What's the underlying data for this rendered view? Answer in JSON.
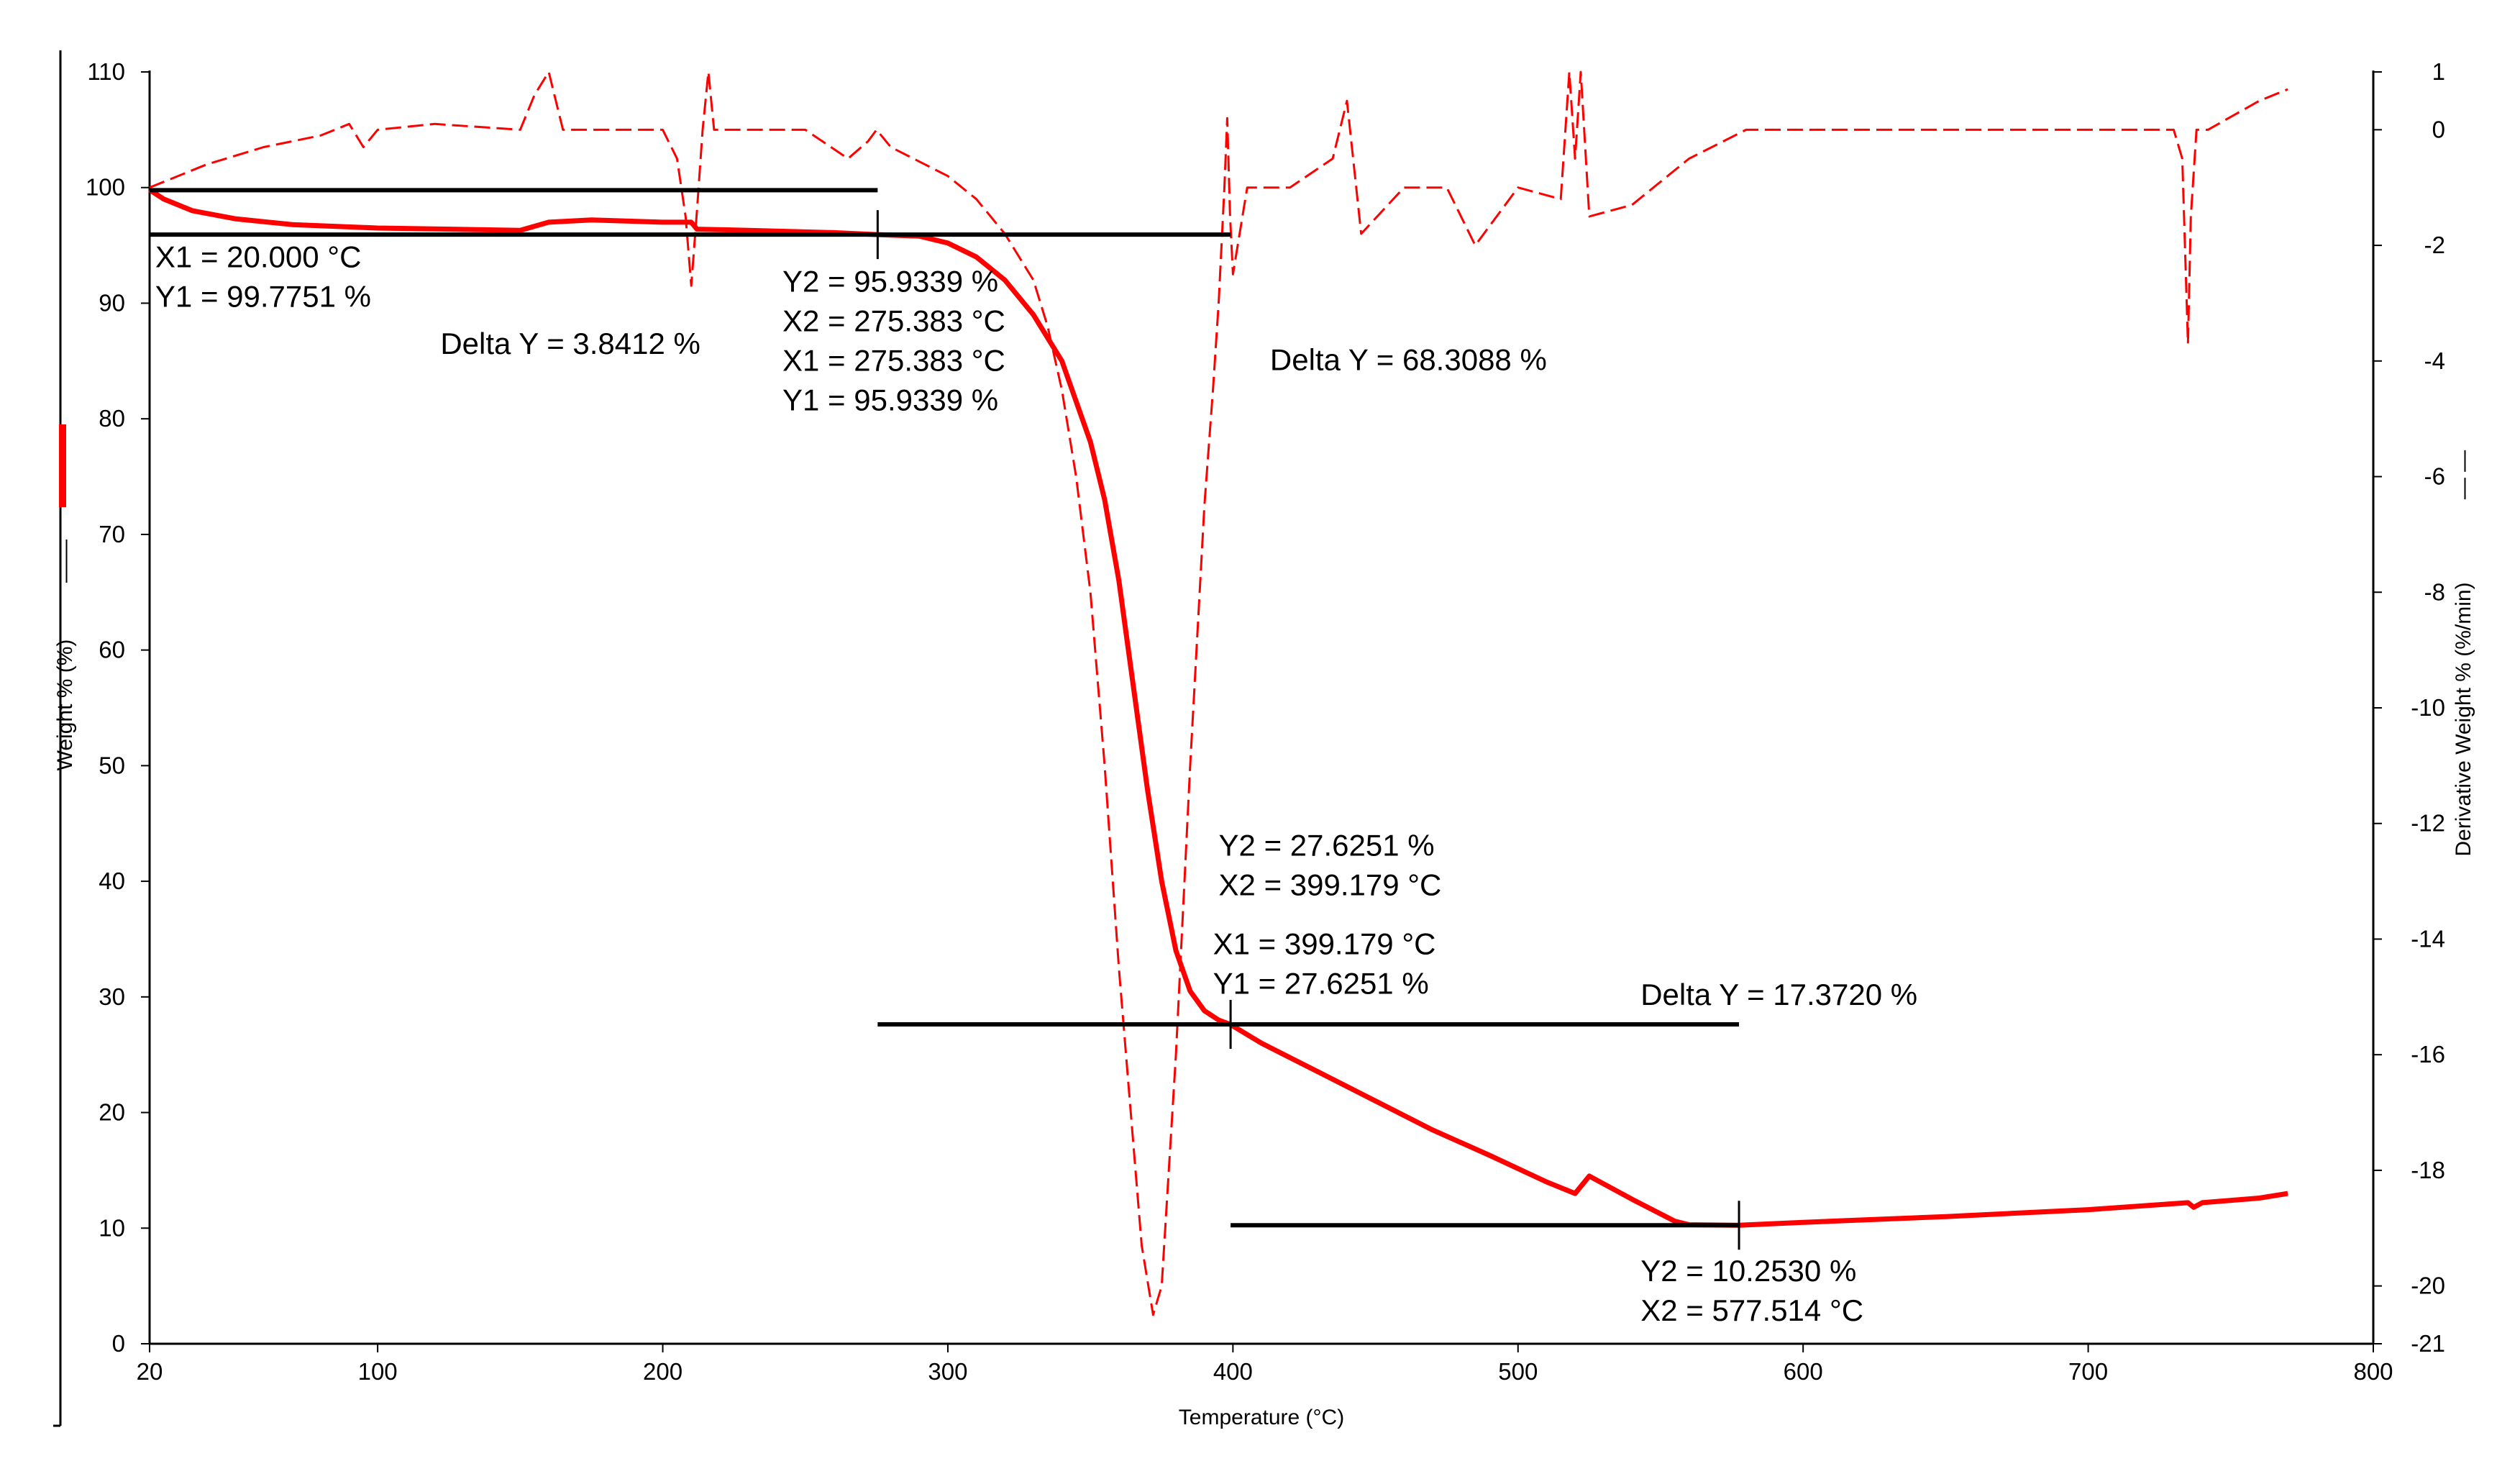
{
  "chart_data": {
    "type": "line",
    "title": "",
    "xlabel": "Temperature (°C)",
    "ylabel": "Weight % (%)",
    "ylabel_legend": "——",
    "y2label": "Derivative Weight % (%/min)",
    "y2label_legend": "— —",
    "xlim": [
      20,
      800
    ],
    "ylim": [
      0,
      110
    ],
    "y2lim": [
      -21,
      1
    ],
    "x_ticks": [
      20,
      100,
      200,
      300,
      400,
      500,
      600,
      700,
      800
    ],
    "y_ticks": [
      0,
      10,
      20,
      30,
      40,
      50,
      60,
      70,
      80,
      90,
      100,
      110
    ],
    "y2_ticks": [
      1,
      0,
      -2,
      -4,
      -6,
      -8,
      -10,
      -12,
      -14,
      -16,
      -18,
      -20,
      -21
    ],
    "series": [
      {
        "name": "Weight %",
        "axis": "left",
        "style": "solid",
        "color": "#ff0000",
        "x": [
          20,
          25,
          35,
          50,
          70,
          100,
          150,
          160,
          175,
          200,
          210,
          212,
          230,
          260,
          275,
          290,
          300,
          310,
          320,
          330,
          340,
          350,
          355,
          360,
          365,
          370,
          375,
          380,
          385,
          390,
          395,
          399,
          410,
          430,
          450,
          470,
          490,
          510,
          520,
          525,
          540,
          555,
          560,
          577.5,
          600,
          650,
          700,
          735,
          737,
          740,
          760,
          770
        ],
        "y": [
          99.8,
          99.0,
          98.0,
          97.3,
          96.8,
          96.5,
          96.3,
          97.0,
          97.2,
          97.0,
          97.0,
          96.4,
          96.3,
          96.1,
          95.93,
          95.8,
          95.2,
          94.0,
          92.0,
          89.0,
          85.0,
          78.0,
          73.0,
          66.0,
          57.0,
          48.0,
          40.0,
          34.0,
          30.5,
          28.8,
          28.0,
          27.63,
          26.0,
          23.5,
          21.0,
          18.5,
          16.3,
          14.0,
          13.0,
          14.5,
          12.5,
          10.6,
          10.3,
          10.25,
          10.5,
          11.0,
          11.6,
          12.2,
          11.8,
          12.2,
          12.6,
          13.0
        ]
      },
      {
        "name": "Derivative Weight %",
        "axis": "right",
        "style": "dashed",
        "color": "#ff0000",
        "x": [
          20,
          25,
          40,
          60,
          80,
          90,
          95,
          100,
          120,
          150,
          155,
          160,
          165,
          180,
          200,
          205,
          208,
          210,
          212,
          214,
          216,
          218,
          225,
          250,
          265,
          272,
          275,
          280,
          300,
          310,
          320,
          330,
          335,
          340,
          345,
          350,
          355,
          360,
          365,
          368,
          372,
          375,
          380,
          385,
          390,
          393,
          395,
          397,
          398,
          399,
          400,
          405,
          420,
          435,
          440,
          445,
          460,
          475,
          485,
          500,
          515,
          518,
          520,
          522,
          525,
          540,
          560,
          580,
          600,
          650,
          700,
          730,
          733,
          735,
          736,
          738,
          742,
          760,
          770
        ],
        "y": [
          -1.0,
          -0.9,
          -0.6,
          -0.3,
          -0.1,
          0.1,
          -0.3,
          0.0,
          0.1,
          0.0,
          0.6,
          1.0,
          0.0,
          0.0,
          0.0,
          -0.5,
          -1.5,
          -2.7,
          -1.4,
          0.0,
          1.0,
          0.0,
          0.0,
          0.0,
          -0.5,
          -0.2,
          0.0,
          -0.3,
          -0.8,
          -1.2,
          -1.8,
          -2.6,
          -3.4,
          -4.5,
          -6.0,
          -8.0,
          -11.0,
          -14.5,
          -17.5,
          -19.3,
          -20.5,
          -20.0,
          -16.0,
          -11.0,
          -6.5,
          -4.5,
          -3.0,
          -1.0,
          0.2,
          -1.5,
          -2.5,
          -1.0,
          -1.0,
          -0.5,
          0.5,
          -1.8,
          -1.0,
          -1.0,
          -2.0,
          -1.0,
          -1.2,
          1.0,
          -0.5,
          1.0,
          -1.5,
          -1.3,
          -0.5,
          0.0,
          0.0,
          0.0,
          0.0,
          0.0,
          -0.5,
          -3.7,
          -1.5,
          0.0,
          0.0,
          0.5,
          0.7
        ]
      }
    ],
    "markers": [
      {
        "y": 99.7751,
        "x_start": 20,
        "x_end": 275.383
      },
      {
        "y": 95.9339,
        "x_start": 20,
        "x_end": 399.179
      },
      {
        "y": 27.6251,
        "x_start": 275.383,
        "x_end": 577.514
      },
      {
        "y": 10.253,
        "x_start": 399.179,
        "x_end": 577.514
      }
    ],
    "marker_ticks": [
      {
        "x": 275.383,
        "y": 95.9339
      },
      {
        "x": 399.179,
        "y": 27.6251
      },
      {
        "x": 577.514,
        "y": 10.253
      }
    ],
    "annotations": [
      {
        "lines": [
          "X1 = 20.000 °C",
          "Y1 = 99.7751 %"
        ],
        "x": 22,
        "y": 93.1
      },
      {
        "lines": [
          "Delta Y = 3.8412 %"
        ],
        "x": 122,
        "y": 85.6
      },
      {
        "lines": [
          "Y2 = 95.9339 %",
          "X2 = 275.383 °C",
          "X1 = 275.383 °C",
          "Y1 = 95.9339 %"
        ],
        "x": 242,
        "y": 91.0
      },
      {
        "lines": [
          "Delta Y = 68.3088 %"
        ],
        "x": 413,
        "y": 84.2
      },
      {
        "lines": [
          "Y2 = 27.6251 %",
          "X2 = 399.179 °C"
        ],
        "x": 395,
        "y": 42.2
      },
      {
        "lines": [
          "X1 = 399.179 °C",
          "Y1 = 27.6251 %"
        ],
        "x": 393,
        "y": 33.7
      },
      {
        "lines": [
          "Delta Y = 17.3720 %"
        ],
        "x": 543,
        "y": 29.3
      },
      {
        "lines": [
          "Y2 = 10.2530 %",
          "X2 = 577.514 °C"
        ],
        "x": 543,
        "y": 5.4
      }
    ]
  }
}
